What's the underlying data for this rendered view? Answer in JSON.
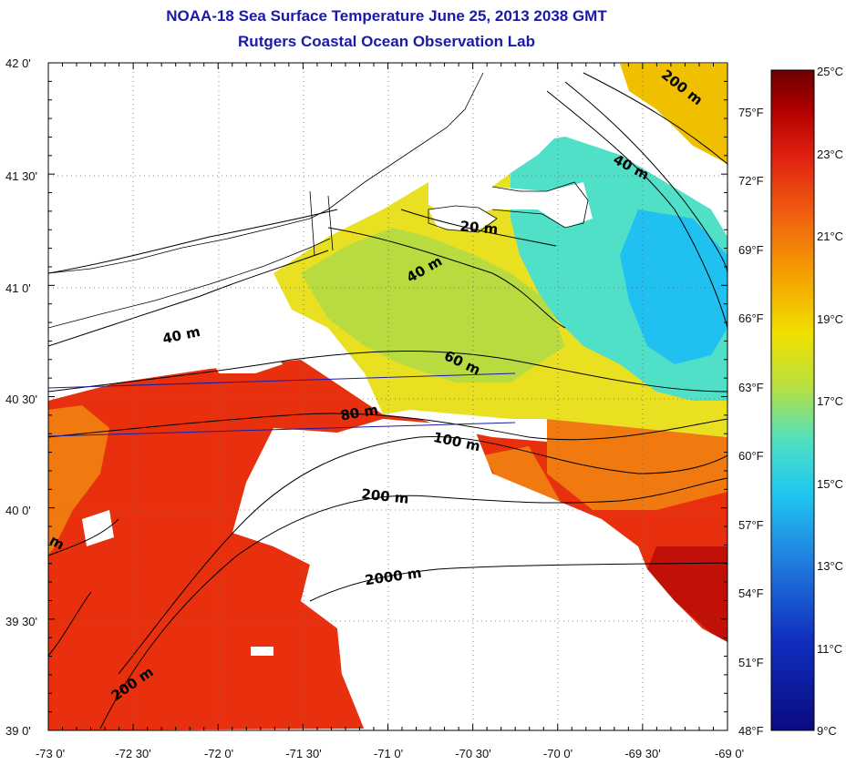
{
  "title": "NOAA-18 Sea Surface Temperature June 25, 2013 2038 GMT",
  "subtitle": "Rutgers Coastal Ocean Observation Lab",
  "map": {
    "lat_labels": [
      "42 0'",
      "41 30'",
      "41 0'",
      "40 30'",
      "40 0'",
      "39 30'",
      "39 0'"
    ],
    "lon_labels": [
      "-73 0'",
      "-72 30'",
      "-72 0'",
      "-71 30'",
      "-71 0'",
      "-70 30'",
      "-70 0'",
      "-69 30'",
      "-69 0'"
    ],
    "gridlines": true,
    "isobaths": [
      {
        "label": "200 m",
        "angle": 38
      },
      {
        "label": "40 m",
        "angle": 28
      },
      {
        "label": "20 m",
        "angle": 5
      },
      {
        "label": "40 m",
        "angle": -30
      },
      {
        "label": "40 m",
        "angle": -12
      },
      {
        "label": "60 m",
        "angle": 25
      },
      {
        "label": "80 m",
        "angle": -10
      },
      {
        "label": "100 m",
        "angle": 12
      },
      {
        "label": "200 m",
        "angle": 6
      },
      {
        "label": "2000 m",
        "angle": -8
      },
      {
        "label": "200 m",
        "angle": -35
      },
      {
        "label": "m",
        "angle": 30
      }
    ],
    "no_data_color": "#ffffff",
    "land_color": "#ffffff"
  },
  "colorbar": {
    "celsius_labels": [
      "25°C",
      "23°C",
      "21°C",
      "19°C",
      "17°C",
      "15°C",
      "13°C",
      "11°C",
      "9°C"
    ],
    "fahrenheit_labels": [
      "75°F",
      "72°F",
      "69°F",
      "66°F",
      "63°F",
      "60°F",
      "57°F",
      "54°F",
      "51°F",
      "48°F"
    ],
    "colors": [
      "#6b0000",
      "#b00000",
      "#e02010",
      "#f06010",
      "#f5a000",
      "#f0e000",
      "#b8e040",
      "#50e0c0",
      "#20c8f0",
      "#2080e0",
      "#1030c0",
      "#0a0a80"
    ]
  }
}
